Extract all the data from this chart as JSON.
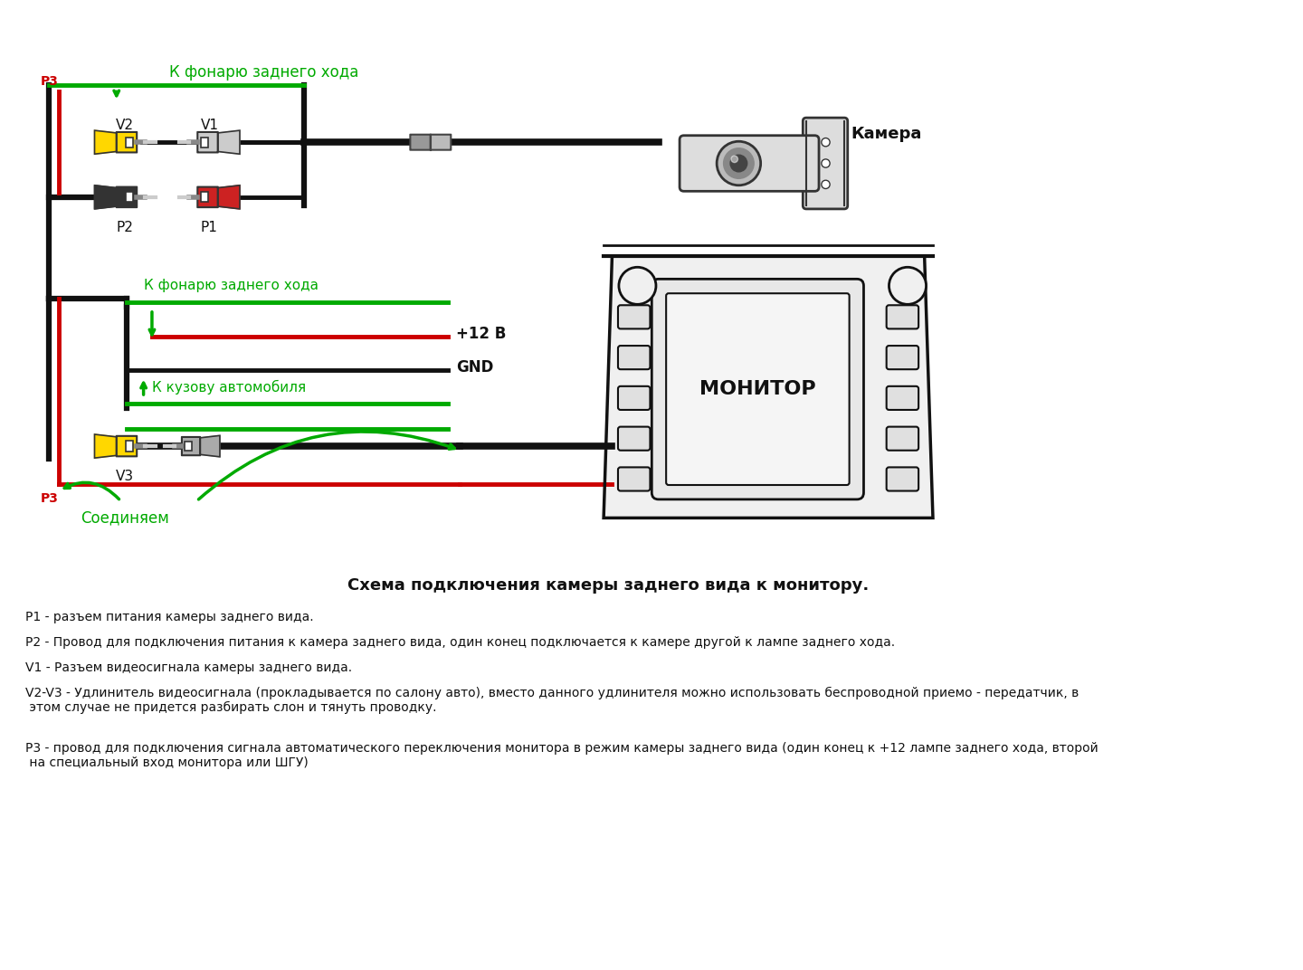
{
  "bg_color": "#ffffff",
  "title_schema": "Схема подключения камеры заднего вида к монитору.",
  "descriptions": [
    "P1 - разъем питания камеры заднего вида.",
    "P2 - Провод для подключения питания к камера заднего вида, один конец подключается к камере другой к лампе заднего хода.",
    "V1 - Разъем видеосигнала камеры заднего вида.",
    "V2-V3 - Удлинитель видеосигнала (прокладывается по салону авто), вместо данного удлинителя можно использовать беспроводной приемо - передатчик, в\n этом случае не придется разбирать слон и тянуть проводку.",
    "Р3 - провод для подключения сигнала автоматического переключения монитора в режим камеры заднего вида (один конец к +12 лампе заднего хода, второй\n на специальный вход монитора или ШГУ)"
  ],
  "label_k_fonaru": "К фонарю заднего хода",
  "label_k_kuzovu": "К кузову автомобиля",
  "label_soedinjaem": "Соединяем",
  "label_kamera": "Камера",
  "label_monitor": "МОНИТОР",
  "label_12v": "+12 В",
  "label_gnd": "GND",
  "green_color": "#00aa00",
  "red_color": "#cc0000",
  "black_color": "#111111",
  "yellow_color": "#FFD700",
  "gray_color": "#aaaaaa",
  "dark_gray": "#555555",
  "wire_lw": 3.5,
  "thin_lw": 2.0
}
